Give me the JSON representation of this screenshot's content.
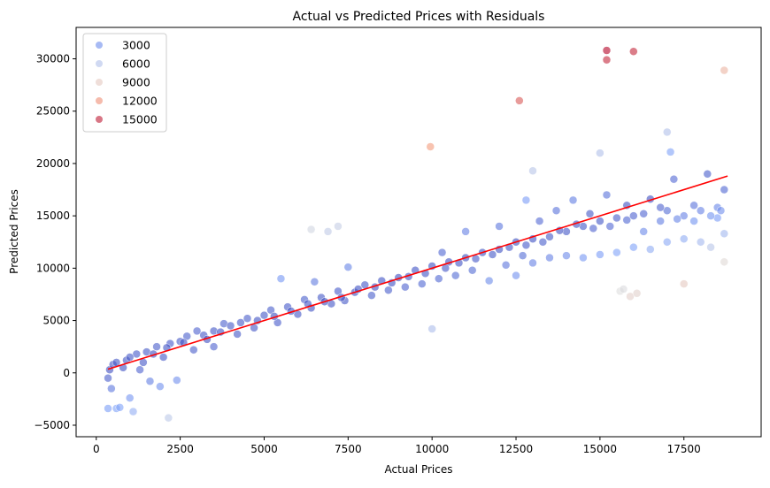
{
  "chart_data": {
    "type": "scatter",
    "title": "Actual vs Predicted Prices with Residuals",
    "xlabel": "Actual Prices",
    "ylabel": "Predicted Prices",
    "xlim": [
      -600,
      19800
    ],
    "ylim": [
      -6100,
      33000
    ],
    "x_ticks": [
      0,
      2500,
      5000,
      7500,
      10000,
      12500,
      15000,
      17500
    ],
    "y_ticks": [
      -5000,
      0,
      5000,
      10000,
      15000,
      20000,
      25000,
      30000
    ],
    "grid": false,
    "legend": {
      "placement": "top-left",
      "entries": [
        "3000",
        "6000",
        "9000",
        "12000",
        "15000"
      ],
      "values": [
        3000,
        6000,
        9000,
        12000,
        15000
      ]
    },
    "hue": "residual",
    "colormap": "coolwarm",
    "hue_range": [
      0,
      15600
    ],
    "fit_line": {
      "color": "#ff0000",
      "points": [
        [
          350,
          350
        ],
        [
          18800,
          18800
        ]
      ]
    },
    "points_format": [
      "actual",
      "predicted",
      "residual"
    ],
    "points": [
      [
        350,
        -500,
        850
      ],
      [
        400,
        300,
        100
      ],
      [
        450,
        -1500,
        1950
      ],
      [
        500,
        800,
        300
      ],
      [
        600,
        -3400,
        4000
      ],
      [
        700,
        -3300,
        4000
      ],
      [
        800,
        500,
        300
      ],
      [
        900,
        1200,
        300
      ],
      [
        1000,
        -2400,
        3400
      ],
      [
        1100,
        -3700,
        4800
      ],
      [
        1200,
        1800,
        600
      ],
      [
        1300,
        300,
        1000
      ],
      [
        1500,
        2000,
        500
      ],
      [
        1600,
        -800,
        2400
      ],
      [
        1800,
        2500,
        700
      ],
      [
        1900,
        -1300,
        3200
      ],
      [
        2000,
        1500,
        500
      ],
      [
        2200,
        2800,
        600
      ],
      [
        2400,
        -700,
        3100
      ],
      [
        2500,
        3000,
        500
      ],
      [
        350,
        -3400,
        3750
      ],
      [
        1000,
        1500,
        500
      ],
      [
        1400,
        1000,
        400
      ],
      [
        600,
        1000,
        400
      ],
      [
        2700,
        3500,
        800
      ],
      [
        2900,
        2200,
        700
      ],
      [
        3000,
        4000,
        1000
      ],
      [
        3200,
        3600,
        400
      ],
      [
        3500,
        4000,
        500
      ],
      [
        3500,
        2500,
        1000
      ],
      [
        3800,
        4700,
        900
      ],
      [
        4000,
        4500,
        500
      ],
      [
        4200,
        3700,
        500
      ],
      [
        4500,
        5200,
        700
      ],
      [
        4700,
        4300,
        400
      ],
      [
        5000,
        5500,
        500
      ],
      [
        5200,
        6000,
        800
      ],
      [
        5400,
        4800,
        600
      ],
      [
        5500,
        9000,
        3500
      ],
      [
        5700,
        6300,
        600
      ],
      [
        6000,
        5600,
        400
      ],
      [
        6200,
        7000,
        800
      ],
      [
        6400,
        6200,
        200
      ],
      [
        6500,
        8700,
        2200
      ],
      [
        6700,
        7200,
        500
      ],
      [
        7000,
        6600,
        400
      ],
      [
        7200,
        7800,
        600
      ],
      [
        7400,
        6900,
        500
      ],
      [
        7500,
        10100,
        2600
      ],
      [
        7700,
        7700,
        0
      ],
      [
        8000,
        8400,
        400
      ],
      [
        8200,
        7400,
        800
      ],
      [
        8500,
        8800,
        300
      ],
      [
        8700,
        7900,
        800
      ],
      [
        9000,
        9100,
        100
      ],
      [
        9200,
        8200,
        1000
      ],
      [
        9500,
        9800,
        300
      ],
      [
        9700,
        8500,
        1200
      ],
      [
        10000,
        10200,
        200
      ],
      [
        10200,
        9000,
        1200
      ],
      [
        10300,
        11500,
        1200
      ],
      [
        10500,
        10600,
        100
      ],
      [
        10700,
        9300,
        1400
      ],
      [
        11000,
        11000,
        0
      ],
      [
        11000,
        13500,
        2500
      ],
      [
        11200,
        9800,
        1400
      ],
      [
        11500,
        11500,
        0
      ],
      [
        11700,
        8800,
        2900
      ],
      [
        12000,
        11800,
        200
      ],
      [
        12000,
        14000,
        2000
      ],
      [
        12200,
        10300,
        1900
      ],
      [
        12500,
        12500,
        0
      ],
      [
        12500,
        9300,
        3200
      ],
      [
        12700,
        11200,
        1500
      ],
      [
        12800,
        16500,
        3700
      ],
      [
        13000,
        12800,
        200
      ],
      [
        13000,
        10500,
        2500
      ],
      [
        13200,
        14500,
        1300
      ],
      [
        13500,
        13000,
        500
      ],
      [
        13500,
        11000,
        2500
      ],
      [
        13700,
        15500,
        1800
      ],
      [
        14000,
        13500,
        500
      ],
      [
        14000,
        11200,
        2800
      ],
      [
        14200,
        16500,
        2300
      ],
      [
        14500,
        14000,
        500
      ],
      [
        14500,
        11000,
        3500
      ],
      [
        14700,
        15200,
        500
      ],
      [
        15000,
        14500,
        500
      ],
      [
        15000,
        11300,
        3700
      ],
      [
        15200,
        17000,
        1800
      ],
      [
        15500,
        14800,
        700
      ],
      [
        15500,
        11500,
        4000
      ],
      [
        15800,
        16000,
        200
      ],
      [
        16000,
        15000,
        1000
      ],
      [
        16000,
        12000,
        4000
      ],
      [
        16300,
        13500,
        2800
      ],
      [
        16500,
        16600,
        100
      ],
      [
        16500,
        11800,
        4700
      ],
      [
        16800,
        14500,
        2300
      ],
      [
        17000,
        15500,
        1500
      ],
      [
        17000,
        12500,
        4500
      ],
      [
        17200,
        18500,
        1300
      ],
      [
        17500,
        15000,
        2500
      ],
      [
        17500,
        12800,
        4700
      ],
      [
        17800,
        16000,
        1800
      ],
      [
        18000,
        15500,
        2500
      ],
      [
        18000,
        12500,
        5500
      ],
      [
        18200,
        19000,
        800
      ],
      [
        18500,
        15800,
        2700
      ],
      [
        18500,
        14800,
        3700
      ],
      [
        18700,
        17500,
        1200
      ],
      [
        18700,
        13300,
        5400
      ],
      [
        18300,
        12000,
        6300
      ],
      [
        1700,
        1800,
        100
      ],
      [
        2100,
        2400,
        300
      ],
      [
        2600,
        2900,
        300
      ],
      [
        3300,
        3200,
        100
      ],
      [
        3700,
        3900,
        200
      ],
      [
        4300,
        4800,
        500
      ],
      [
        4800,
        5000,
        200
      ],
      [
        5300,
        5400,
        100
      ],
      [
        5800,
        5900,
        100
      ],
      [
        6300,
        6600,
        300
      ],
      [
        6800,
        6800,
        0
      ],
      [
        7300,
        7200,
        100
      ],
      [
        7800,
        8000,
        200
      ],
      [
        8300,
        8200,
        100
      ],
      [
        8800,
        8600,
        200
      ],
      [
        9300,
        9200,
        100
      ],
      [
        9800,
        9500,
        300
      ],
      [
        10400,
        10000,
        400
      ],
      [
        10800,
        10500,
        300
      ],
      [
        11300,
        10900,
        400
      ],
      [
        11800,
        11300,
        500
      ],
      [
        12300,
        12000,
        300
      ],
      [
        12800,
        12200,
        600
      ],
      [
        13300,
        12500,
        800
      ],
      [
        13800,
        13600,
        200
      ],
      [
        14300,
        14200,
        100
      ],
      [
        14800,
        13800,
        1000
      ],
      [
        15300,
        14000,
        1300
      ],
      [
        15800,
        14600,
        1200
      ],
      [
        16300,
        15200,
        1100
      ],
      [
        16800,
        15800,
        1000
      ],
      [
        17300,
        14700,
        2600
      ],
      [
        17800,
        14500,
        3300
      ],
      [
        18300,
        15000,
        3300
      ],
      [
        18600,
        15500,
        3100
      ],
      [
        9950,
        21600,
        11650
      ],
      [
        12600,
        26000,
        13400
      ],
      [
        15200,
        30800,
        15600
      ],
      [
        15200,
        29900,
        14700
      ],
      [
        16000,
        30700,
        14700
      ],
      [
        18700,
        28900,
        10200
      ],
      [
        6400,
        13700,
        7300
      ],
      [
        7200,
        14000,
        6800
      ],
      [
        6900,
        13500,
        6600
      ],
      [
        18700,
        10600,
        8100
      ],
      [
        17500,
        8500,
        9000
      ],
      [
        15900,
        7300,
        8600
      ],
      [
        16100,
        7600,
        8500
      ],
      [
        15600,
        7800,
        7800
      ],
      [
        15700,
        8000,
        7700
      ],
      [
        2150,
        -4300,
        6450
      ],
      [
        10000,
        4200,
        5800
      ],
      [
        17000,
        23000,
        6000
      ],
      [
        15000,
        21000,
        6000
      ],
      [
        13000,
        19300,
        6300
      ],
      [
        17100,
        21100,
        4000
      ]
    ]
  }
}
